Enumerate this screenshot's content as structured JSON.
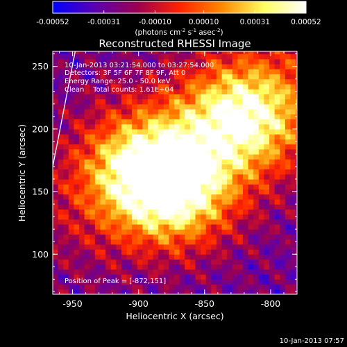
{
  "chart_data": {
    "type": "heatmap",
    "title": "Reconstructed RHESSI Image",
    "xlabel": "Heliocentric X (arcsec)",
    "ylabel": "Heliocentric Y (arcsec)",
    "xlim": [
      -965,
      -780
    ],
    "ylim": [
      68,
      262
    ],
    "x_ticks": [
      -950,
      -900,
      -850,
      -800
    ],
    "y_ticks": [
      100,
      150,
      200,
      250
    ],
    "x_tick_labels": [
      "-950",
      "-900",
      "-850",
      "-800"
    ],
    "y_tick_labels": [
      "100",
      "150",
      "200",
      "250"
    ],
    "colorbar": {
      "range": [
        -0.00052,
        0.00052
      ],
      "ticks": [
        -0.00052,
        -0.00031,
        -0.0001,
        0.0001,
        0.00031,
        0.00052
      ],
      "tick_labels": [
        "-0.00052",
        "-0.00031",
        "-0.00010",
        "0.00010",
        "0.00031",
        "0.00052"
      ],
      "unit_prefix": "(photons cm",
      "unit_exp1": "-2",
      "unit_mid": " s",
      "unit_exp2": "-1",
      "unit_mid2": " asec",
      "unit_exp3": "-2",
      "unit_suffix": ")",
      "colors": [
        "#0000ff",
        "#5a00b0",
        "#9a0050",
        "#ff2200",
        "#ff8800",
        "#ffff60",
        "#ffffff"
      ]
    },
    "annotations": [
      "10-Jan-2013 03:21:54.000 to 03:27:54.000",
      "Detectors: 3F 5F 6F 7F 8F 9F, Att 0",
      "Energy Range: 25.0 - 50.0 keV",
      "Clean    Total counts: 1.61E+04"
    ],
    "peak_label": "Position of Peak = [-872,151]",
    "peaks": [
      {
        "x": -872,
        "y": 151,
        "value": 0.00052
      },
      {
        "x": -820,
        "y": 212,
        "value": 0.0004
      },
      {
        "x": -902,
        "y": 170,
        "value": 0.00026
      }
    ],
    "limb_line": [
      [
        -948,
        262
      ],
      [
        -965,
        170
      ]
    ],
    "timestamp": "10-Jan-2013 07:57"
  }
}
